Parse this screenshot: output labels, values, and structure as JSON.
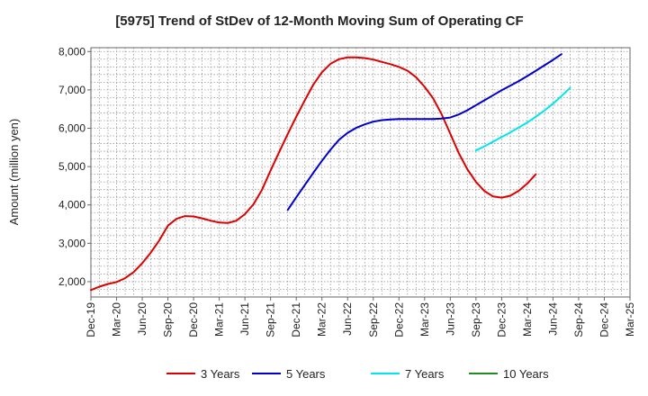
{
  "chart_data": {
    "type": "line",
    "title": "[5975]  Trend of StDev of 12-Month Moving Sum of Operating CF",
    "xlabel": "",
    "ylabel": "Amount (million yen)",
    "ylim": [
      1600,
      8100
    ],
    "yticks": [
      2000,
      3000,
      4000,
      5000,
      6000,
      7000,
      8000
    ],
    "ytick_labels": [
      "2,000",
      "3,000",
      "4,000",
      "5,000",
      "6,000",
      "7,000",
      "8,000"
    ],
    "x_start": "Dec-19",
    "x_end": "Mar-25",
    "xtick_labels": [
      "Dec-19",
      "Mar-20",
      "Jun-20",
      "Sep-20",
      "Dec-20",
      "Mar-21",
      "Jun-21",
      "Sep-21",
      "Dec-21",
      "Mar-22",
      "Jun-22",
      "Sep-22",
      "Dec-22",
      "Mar-23",
      "Jun-23",
      "Sep-23",
      "Dec-23",
      "Mar-24",
      "Jun-24",
      "Sep-24",
      "Dec-24",
      "Mar-25"
    ],
    "grid": true,
    "legend_position": "bottom",
    "series": [
      {
        "name": "3 Years",
        "color": "#dd0000",
        "start": "Dec-19",
        "values": [
          1780,
          1870,
          1940,
          1990,
          2090,
          2250,
          2480,
          2760,
          3080,
          3460,
          3640,
          3710,
          3700,
          3650,
          3590,
          3540,
          3530,
          3590,
          3760,
          4020,
          4400,
          4900,
          5380,
          5850,
          6300,
          6730,
          7140,
          7460,
          7680,
          7800,
          7850,
          7850,
          7830,
          7790,
          7730,
          7670,
          7600,
          7500,
          7330,
          7080,
          6780,
          6360,
          5860,
          5350,
          4930,
          4600,
          4360,
          4220,
          4190,
          4240,
          4370,
          4560,
          4800
        ]
      },
      {
        "name": "5 Years",
        "color": "#0000cc",
        "start": "Nov-21",
        "values": [
          3870,
          4200,
          4520,
          4840,
          5150,
          5440,
          5700,
          5880,
          6010,
          6100,
          6170,
          6210,
          6230,
          6240,
          6240,
          6240,
          6240,
          6240,
          6250,
          6280,
          6360,
          6470,
          6600,
          6730,
          6860,
          6990,
          7110,
          7230,
          7360,
          7500,
          7640,
          7780,
          7930
        ]
      },
      {
        "name": "7 Years",
        "color": "#00e5ee",
        "start": "Sep-23",
        "values": [
          5420,
          5530,
          5650,
          5770,
          5890,
          6020,
          6150,
          6300,
          6460,
          6640,
          6840,
          7050
        ]
      },
      {
        "name": "10 Years",
        "color": "#228b22",
        "start": "",
        "values": []
      }
    ]
  }
}
